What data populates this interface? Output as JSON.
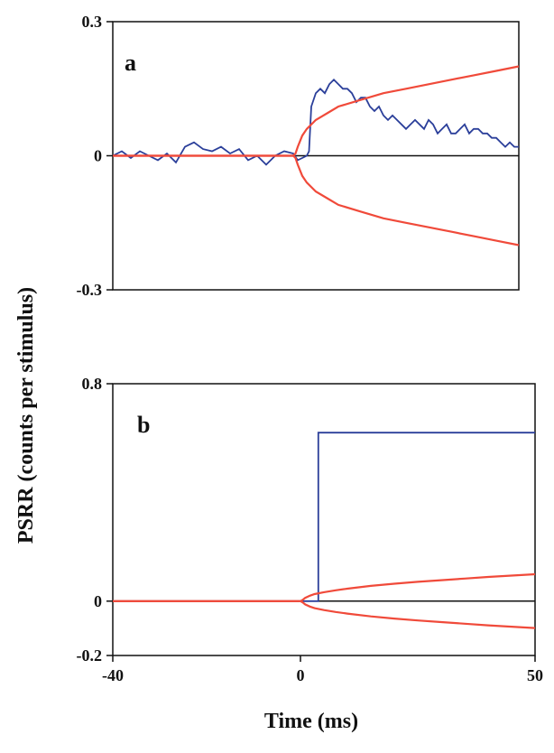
{
  "chart_data": [
    {
      "type": "line",
      "panel_label": "a",
      "xlim": [
        -40,
        50
      ],
      "ylim": [
        -0.3,
        0.3
      ],
      "yticks": [
        "0.3",
        "0",
        "-0.3"
      ],
      "colors": {
        "response": "#2b3f9a",
        "bound": "#f04a3a"
      },
      "series": [
        {
          "role": "response",
          "x": [
            -40,
            -38,
            -36,
            -34,
            -32,
            -30,
            -28,
            -26,
            -24,
            -22,
            -20,
            -18,
            -16,
            -14,
            -12,
            -10,
            -8,
            -6,
            -4,
            -2,
            0,
            1,
            2,
            3,
            3.5,
            4,
            5,
            6,
            7,
            8,
            9,
            10,
            11,
            12,
            13,
            14,
            15,
            16,
            17,
            18,
            19,
            20,
            21,
            22,
            23,
            24,
            25,
            26,
            27,
            28,
            29,
            30,
            31,
            32,
            33,
            34,
            35,
            36,
            37,
            38,
            39,
            40,
            41,
            42,
            43,
            44,
            45,
            46,
            47,
            48,
            49,
            50
          ],
          "y": [
            0.0,
            0.01,
            -0.005,
            0.01,
            0.0,
            -0.01,
            0.005,
            -0.015,
            0.02,
            0.03,
            0.015,
            0.01,
            0.02,
            0.005,
            0.015,
            -0.01,
            0.0,
            -0.02,
            0.0,
            0.01,
            0.005,
            -0.01,
            -0.005,
            0.0,
            0.01,
            0.11,
            0.14,
            0.15,
            0.14,
            0.16,
            0.17,
            0.16,
            0.15,
            0.15,
            0.14,
            0.12,
            0.13,
            0.13,
            0.11,
            0.1,
            0.11,
            0.09,
            0.08,
            0.09,
            0.08,
            0.07,
            0.06,
            0.07,
            0.08,
            0.07,
            0.06,
            0.08,
            0.07,
            0.05,
            0.06,
            0.07,
            0.05,
            0.05,
            0.06,
            0.07,
            0.05,
            0.06,
            0.06,
            0.05,
            0.05,
            0.04,
            0.04,
            0.03,
            0.02,
            0.03,
            0.02,
            0.02
          ]
        },
        {
          "role": "bound",
          "x": [
            -40,
            0,
            0.5,
            1,
            2,
            3,
            5,
            7.5,
            10,
            15,
            20,
            25,
            30,
            35,
            40,
            45,
            50
          ],
          "y_upper": [
            0.0,
            0.0,
            0.005,
            0.02,
            0.045,
            0.06,
            0.08,
            0.095,
            0.11,
            0.125,
            0.14,
            0.15,
            0.16,
            0.17,
            0.18,
            0.19,
            0.2
          ],
          "y_lower": [
            0.0,
            0.0,
            -0.005,
            -0.02,
            -0.045,
            -0.06,
            -0.08,
            -0.095,
            -0.11,
            -0.125,
            -0.14,
            -0.15,
            -0.16,
            -0.17,
            -0.18,
            -0.19,
            -0.2
          ]
        }
      ]
    },
    {
      "type": "line",
      "panel_label": "b",
      "xlim": [
        -40,
        50
      ],
      "ylim": [
        -0.2,
        0.8
      ],
      "yticks": [
        "0.8",
        "0",
        "-0.2"
      ],
      "xticks": [
        "-40",
        "0",
        "50"
      ],
      "colors": {
        "response": "#2b3f9a",
        "bound": "#f04a3a"
      },
      "series": [
        {
          "role": "response",
          "x": [
            -40,
            3.8,
            3.8,
            50
          ],
          "y": [
            0.0,
            0.0,
            0.62,
            0.62
          ]
        },
        {
          "role": "bound",
          "x": [
            -40,
            0,
            0.5,
            1,
            2,
            3,
            5,
            7.5,
            10,
            15,
            20,
            25,
            30,
            35,
            40,
            45,
            50
          ],
          "y_upper": [
            0.0,
            0.0,
            0.005,
            0.012,
            0.02,
            0.026,
            0.033,
            0.04,
            0.046,
            0.056,
            0.064,
            0.071,
            0.077,
            0.083,
            0.089,
            0.094,
            0.099
          ],
          "y_lower": [
            0.0,
            0.0,
            -0.005,
            -0.012,
            -0.02,
            -0.026,
            -0.033,
            -0.04,
            -0.046,
            -0.056,
            -0.064,
            -0.071,
            -0.077,
            -0.083,
            -0.089,
            -0.094,
            -0.099
          ]
        }
      ]
    }
  ],
  "ylabel": "PSRR (counts per stimulus)",
  "xlabel": "Time (ms)"
}
